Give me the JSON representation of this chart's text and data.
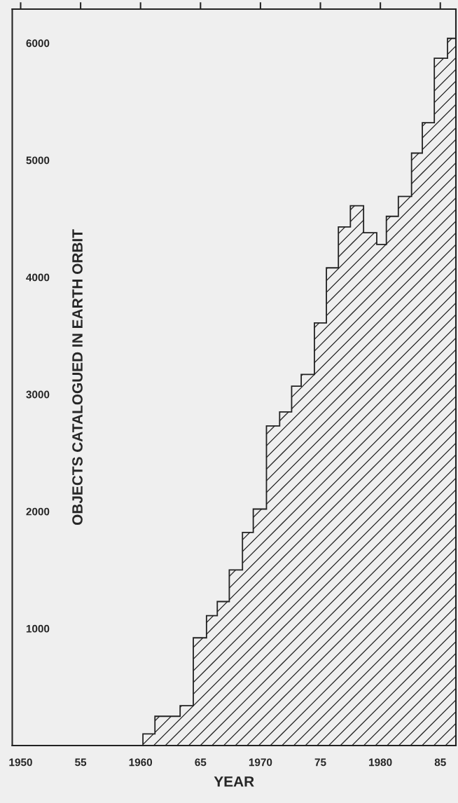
{
  "chart_data": {
    "type": "histogram",
    "xlabel": "YEAR",
    "ylabel": "OBJECTS CATALOGUED IN EARTH ORBIT",
    "bins": [
      1960.2,
      1961.2,
      1963.3,
      1964.4,
      1965.5,
      1966.4,
      1967.4,
      1968.5,
      1969.4,
      1970.5,
      1971.6,
      1972.6,
      1973.4,
      1974.5,
      1975.5,
      1976.5,
      1977.5,
      1978.6,
      1979.7,
      1980.5,
      1981.5,
      1982.6,
      1983.5,
      1984.5,
      1985.6,
      1986.3
    ],
    "values": [
      100,
      250,
      340,
      920,
      1110,
      1230,
      1500,
      1820,
      2020,
      2730,
      2850,
      3070,
      3170,
      3610,
      4080,
      4430,
      4610,
      4380,
      4280,
      4520,
      4690,
      5060,
      5320,
      5870,
      6040
    ],
    "color": "#222222",
    "xlim": [
      1949.3,
      1986.3
    ],
    "xticks": [
      1950,
      {
        "value": 1955,
        "label": "55"
      },
      1960,
      {
        "value": 1965,
        "label": "65"
      },
      1970,
      {
        "value": 1975,
        "label": "75"
      },
      1980,
      {
        "value": 1985,
        "label": "85"
      }
    ],
    "ylim": [
      0,
      6290
    ],
    "yticks": [
      1000,
      2000,
      3000,
      4000,
      5000,
      6000
    ]
  }
}
